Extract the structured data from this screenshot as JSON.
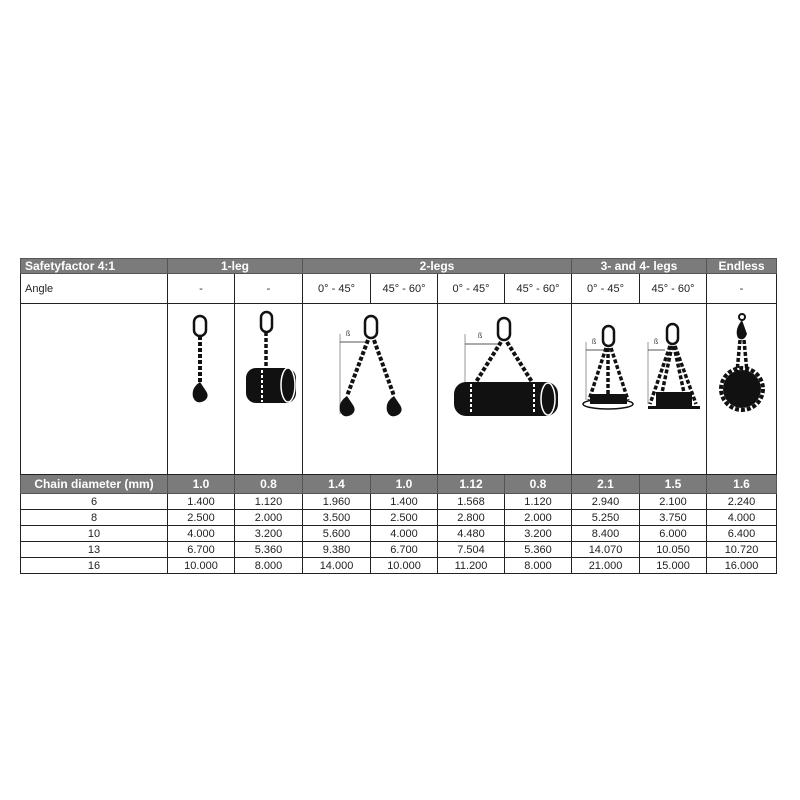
{
  "header": {
    "label": "Safetyfactor 4:1",
    "groups": [
      "1-leg",
      "2-legs",
      "3- and 4- legs",
      "Endless"
    ]
  },
  "angle": {
    "label": "Angle",
    "values": [
      "-",
      "-",
      "0° - 45°",
      "45° - 60°",
      "0° - 45°",
      "45° - 60°",
      "0° - 45°",
      "45° - 60°",
      "-"
    ]
  },
  "diagram_labels": {
    "beta": "ß"
  },
  "factor": {
    "label": "Chain diameter (mm)",
    "values": [
      "1.0",
      "0.8",
      "1.4",
      "1.0",
      "1.12",
      "0.8",
      "2.1",
      "1.5",
      "1.6"
    ]
  },
  "rows": [
    {
      "d": "6",
      "v": [
        "1.400",
        "1.120",
        "1.960",
        "1.400",
        "1.568",
        "1.120",
        "2.940",
        "2.100",
        "2.240"
      ]
    },
    {
      "d": "8",
      "v": [
        "2.500",
        "2.000",
        "3.500",
        "2.500",
        "2.800",
        "2.000",
        "5.250",
        "3.750",
        "4.000"
      ]
    },
    {
      "d": "10",
      "v": [
        "4.000",
        "3.200",
        "5.600",
        "4.000",
        "4.480",
        "3.200",
        "8.400",
        "6.000",
        "6.400"
      ]
    },
    {
      "d": "13",
      "v": [
        "6.700",
        "5.360",
        "9.380",
        "6.700",
        "7.504",
        "5.360",
        "14.070",
        "10.050",
        "10.720"
      ]
    },
    {
      "d": "16",
      "v": [
        "10.000",
        "8.000",
        "14.000",
        "10.000",
        "11.200",
        "8.000",
        "21.000",
        "15.000",
        "16.000"
      ]
    }
  ]
}
